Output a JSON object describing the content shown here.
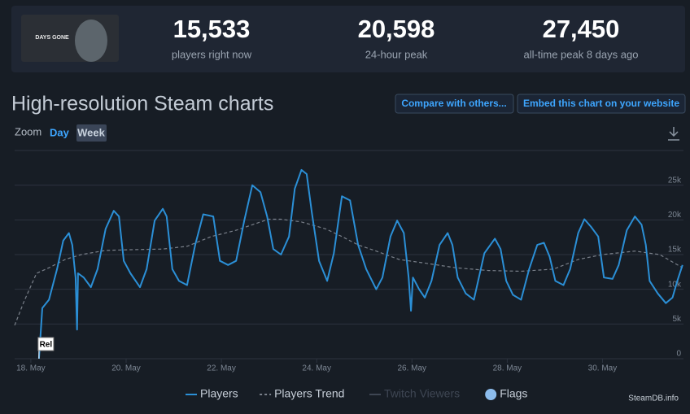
{
  "header": {
    "image_text": "DAYS GONE",
    "stats": [
      {
        "value": "15,533",
        "label": "players right now"
      },
      {
        "value": "20,598",
        "label": "24-hour peak"
      },
      {
        "value": "27,450",
        "label": "all-time peak 8 days ago"
      }
    ]
  },
  "title": "High-resolution Steam charts",
  "buttons": [
    "Compare with others...",
    "Embed this chart on your website"
  ],
  "zoom": {
    "label": "Zoom",
    "options": [
      "Day",
      "Week"
    ]
  },
  "watermark": "SteamDB.info",
  "chart_data": {
    "type": "line",
    "xlim": [
      17.66,
      31.7
    ],
    "xticks": [
      {
        "value": 18,
        "label": "18. May"
      },
      {
        "value": 20,
        "label": "20. May"
      },
      {
        "value": 22,
        "label": "22. May"
      },
      {
        "value": 24,
        "label": "24. May"
      },
      {
        "value": 26,
        "label": "26. May"
      },
      {
        "value": 28,
        "label": "28. May"
      },
      {
        "value": 30,
        "label": "30. May"
      }
    ],
    "ylim": [
      0,
      30000
    ],
    "yticks": [
      0,
      {
        "value": 5000,
        "label": "5k"
      },
      {
        "value": 10000,
        "label": "10k"
      },
      {
        "value": 15000,
        "label": "15k"
      },
      {
        "value": 20000,
        "label": "20k"
      },
      {
        "value": 25000,
        "label": "25k"
      }
    ],
    "grid": true,
    "series": [
      {
        "name": "Players",
        "color": "#2b8fd6",
        "dashed": false,
        "x": [
          18.17,
          18.24,
          18.38,
          18.55,
          18.68,
          18.8,
          18.87,
          18.94,
          18.97,
          18.99,
          19.11,
          19.26,
          19.4,
          19.57,
          19.74,
          19.85,
          19.95,
          20.09,
          20.29,
          20.43,
          20.6,
          20.77,
          20.85,
          20.97,
          21.11,
          21.28,
          21.45,
          21.62,
          21.83,
          21.97,
          22.14,
          22.31,
          22.48,
          22.65,
          22.82,
          22.96,
          23.09,
          23.25,
          23.42,
          23.54,
          23.68,
          23.79,
          23.9,
          24.05,
          24.22,
          24.36,
          24.53,
          24.7,
          24.87,
          25.04,
          25.25,
          25.38,
          25.55,
          25.69,
          25.83,
          25.93,
          25.98,
          26.02,
          26.15,
          26.27,
          26.41,
          26.58,
          26.75,
          26.85,
          26.96,
          27.13,
          27.3,
          27.52,
          27.74,
          27.86,
          27.98,
          28.12,
          28.29,
          28.46,
          28.63,
          28.77,
          28.89,
          29.01,
          29.18,
          29.32,
          29.49,
          29.62,
          29.76,
          29.91,
          30.03,
          30.21,
          30.34,
          30.51,
          30.68,
          30.82,
          30.91,
          30.99,
          31.16,
          31.33,
          31.47,
          31.57,
          31.68
        ],
        "values": [
          0,
          7300,
          8500,
          12900,
          17000,
          18100,
          16400,
          11700,
          4200,
          12300,
          11700,
          10300,
          12900,
          18700,
          21300,
          20500,
          14100,
          12300,
          10300,
          12900,
          19900,
          21600,
          20500,
          12900,
          11200,
          10600,
          16400,
          20800,
          20500,
          14100,
          13500,
          14100,
          19900,
          25000,
          24000,
          20500,
          15800,
          15000,
          17600,
          24500,
          27200,
          26600,
          21000,
          14100,
          11200,
          15200,
          23400,
          22800,
          16400,
          12900,
          10000,
          11700,
          17600,
          19900,
          18100,
          11700,
          6900,
          11700,
          10000,
          8800,
          11200,
          16400,
          18100,
          16400,
          11700,
          9400,
          8500,
          15200,
          17300,
          15800,
          11200,
          9200,
          8500,
          12900,
          16400,
          16700,
          14700,
          11200,
          10600,
          12900,
          18100,
          20100,
          19000,
          17600,
          11700,
          11500,
          13500,
          18500,
          20500,
          19300,
          16400,
          11200,
          9400,
          8000,
          8800,
          11200,
          13500
        ]
      },
      {
        "name": "Players Trend",
        "color": "#7a808a",
        "dashed": true,
        "x": [
          17.66,
          17.86,
          18.12,
          18.38,
          18.72,
          19.06,
          19.57,
          20.09,
          20.77,
          21.28,
          21.79,
          22.31,
          22.65,
          22.99,
          23.25,
          23.68,
          24.19,
          24.53,
          24.87,
          25.21,
          25.73,
          26.24,
          26.92,
          27.61,
          28.29,
          28.97,
          29.49,
          30.0,
          30.68,
          31.2,
          31.68
        ],
        "values": [
          4800,
          8300,
          12300,
          13100,
          14300,
          15000,
          15600,
          15700,
          15800,
          16200,
          17600,
          18500,
          19300,
          20100,
          20100,
          19700,
          18700,
          17600,
          16400,
          15600,
          14300,
          13800,
          13100,
          12700,
          12600,
          12900,
          14300,
          15000,
          15500,
          15000,
          13100
        ]
      }
    ],
    "inactive_legend": [
      "Twitch Viewers"
    ],
    "flags_label": "Flags",
    "annotations": [
      {
        "text": "Rel",
        "x": 18.17
      }
    ]
  }
}
